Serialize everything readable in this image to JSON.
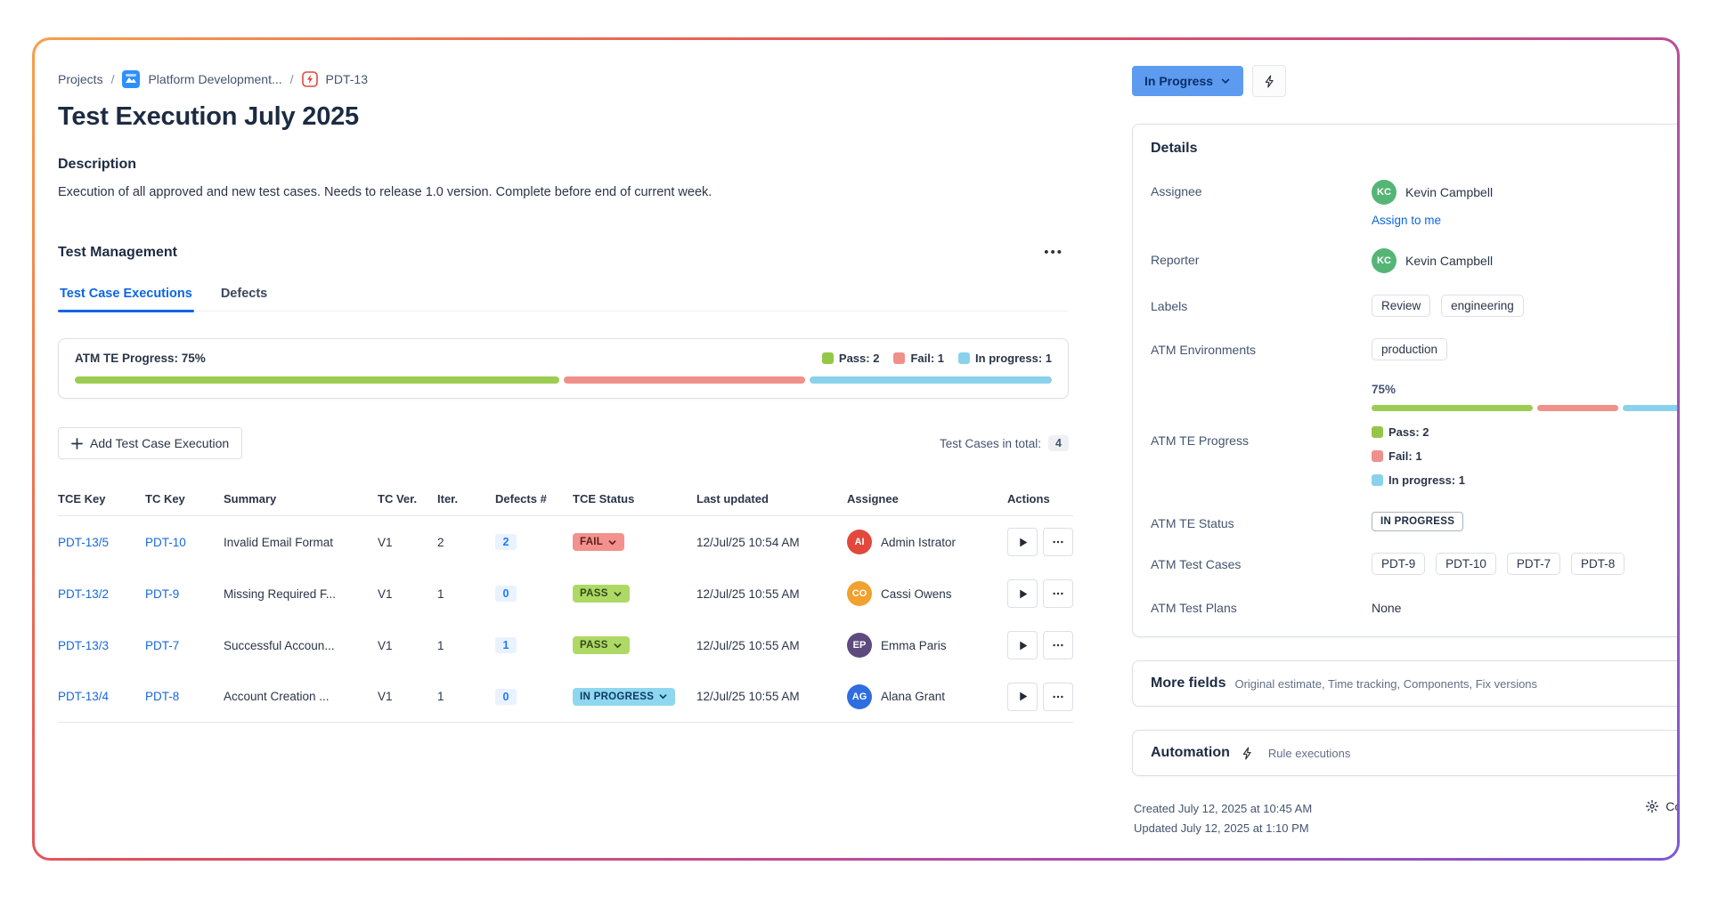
{
  "breadcrumb": {
    "projects": "Projects",
    "project_name": "Platform Development...",
    "issue_key": "PDT-13"
  },
  "page": {
    "title": "Test Execution July 2025"
  },
  "description": {
    "heading": "Description",
    "body": "Execution of all approved and new test cases. Needs to release 1.0 version. Complete before end of current week."
  },
  "test_management": {
    "heading": "Test Management",
    "tabs": [
      {
        "label": "Test Case Executions"
      },
      {
        "label": "Defects"
      }
    ],
    "progress": {
      "label": "ATM TE Progress: 75%",
      "legend": [
        {
          "label": "Pass: 2",
          "color": "#94c748"
        },
        {
          "label": "Fail: 1",
          "color": "#f0908a"
        },
        {
          "label": "In progress: 1",
          "color": "#8ad2ec"
        }
      ],
      "segments": [
        {
          "color": "#9dcc52",
          "pct": 50
        },
        {
          "color": "#f0908a",
          "pct": 25
        },
        {
          "color": "#8ad2ec",
          "pct": 25
        }
      ]
    },
    "add_button": "Add Test Case Execution",
    "total_label": "Test Cases in total:",
    "total_value": "4",
    "columns": [
      "TCE Key",
      "TC Key",
      "Summary",
      "TC Ver.",
      "Iter.",
      "Defects #",
      "TCE Status",
      "Last updated",
      "Assignee",
      "Actions"
    ],
    "rows": [
      {
        "tce_key": "PDT-13/5",
        "tc_key": "PDT-10",
        "summary": "Invalid Email Format",
        "tc_ver": "V1",
        "iter": "2",
        "defects": "2",
        "status": "FAIL",
        "updated": "12/Jul/25 10:54 AM",
        "assignee": "Admin Istrator",
        "avatar_initials": "AI",
        "avatar_color": "#e2483d"
      },
      {
        "tce_key": "PDT-13/2",
        "tc_key": "PDT-9",
        "summary": "Missing Required F...",
        "tc_ver": "V1",
        "iter": "1",
        "defects": "0",
        "status": "PASS",
        "updated": "12/Jul/25 10:55 AM",
        "assignee": "Cassi Owens",
        "avatar_initials": "CO",
        "avatar_color": "#f0a12e"
      },
      {
        "tce_key": "PDT-13/3",
        "tc_key": "PDT-7",
        "summary": "Successful Accoun...",
        "tc_ver": "V1",
        "iter": "1",
        "defects": "1",
        "status": "PASS",
        "updated": "12/Jul/25 10:55 AM",
        "assignee": "Emma Paris",
        "avatar_initials": "EP",
        "avatar_color": "#5d4a7e"
      },
      {
        "tce_key": "PDT-13/4",
        "tc_key": "PDT-8",
        "summary": "Account Creation ...",
        "tc_ver": "V1",
        "iter": "1",
        "defects": "0",
        "status": "IN PROGRESS",
        "updated": "12/Jul/25 10:55 AM",
        "assignee": "Alana Grant",
        "avatar_initials": "AG",
        "avatar_color": "#2e6ee0"
      }
    ]
  },
  "status_bar": {
    "status_button": "In Progress"
  },
  "details": {
    "heading": "Details",
    "assignee_label": "Assignee",
    "assignee_name": "Kevin Campbell",
    "assignee_initials": "KC",
    "assignee_color": "#55b576",
    "assign_to_me": "Assign to me",
    "reporter_label": "Reporter",
    "reporter_name": "Kevin Campbell",
    "labels_label": "Labels",
    "labels": [
      "Review",
      "engineering"
    ],
    "environments_label": "ATM Environments",
    "environments": [
      "production"
    ],
    "progress_label": "ATM TE Progress",
    "progress_pct": "75%",
    "status_label": "ATM TE Status",
    "status_value": "IN PROGRESS",
    "test_cases_label": "ATM Test Cases",
    "test_cases": [
      "PDT-9",
      "PDT-10",
      "PDT-7",
      "PDT-8"
    ],
    "test_plans_label": "ATM Test Plans",
    "test_plans_value": "None"
  },
  "more_fields": {
    "heading": "More fields",
    "subtitle": "Original estimate, Time tracking, Components, Fix versions"
  },
  "automation": {
    "heading": "Automation",
    "subtitle": "Rule executions"
  },
  "footer": {
    "created": "Created July 12, 2025 at 10:45 AM",
    "updated": "Updated July 12, 2025 at 1:10 PM",
    "configure": "Configure"
  }
}
